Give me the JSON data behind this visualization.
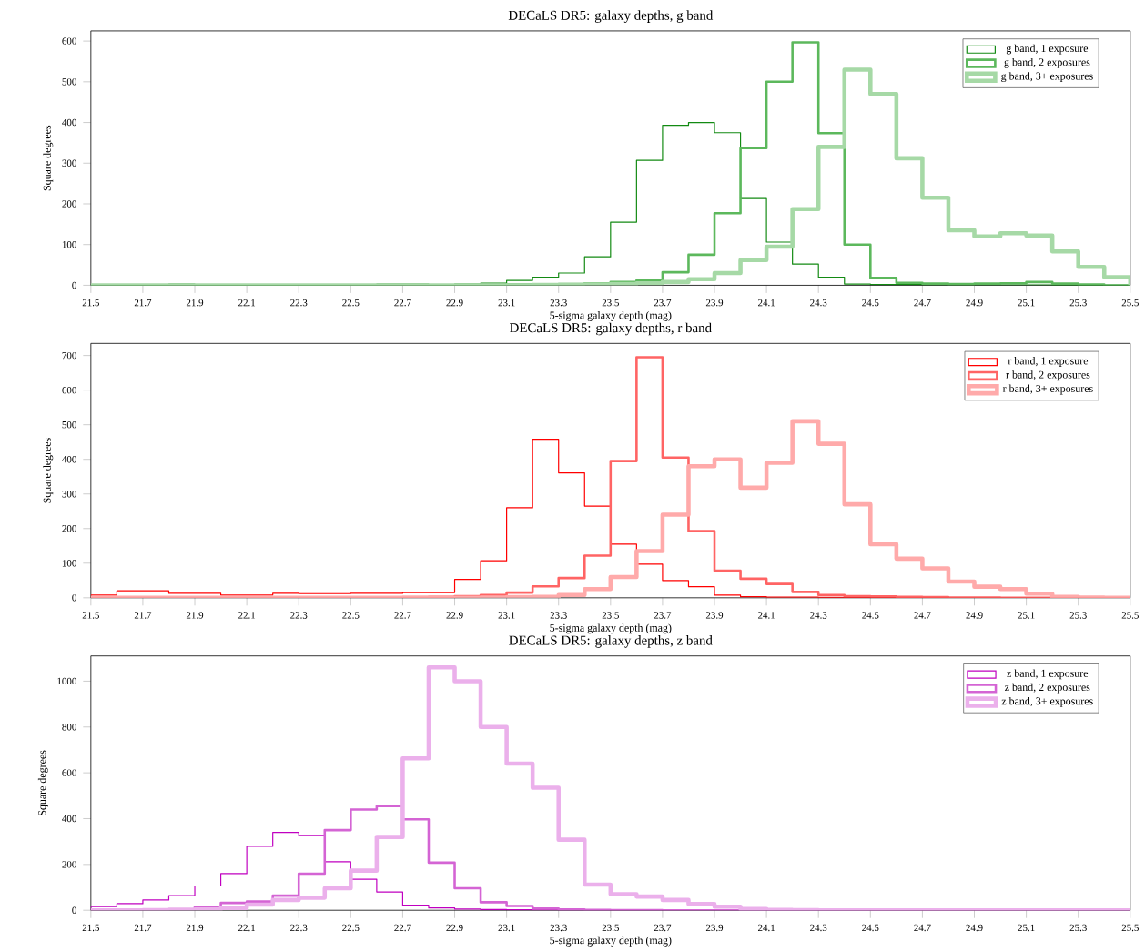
{
  "chart_data": [
    {
      "type": "histogram",
      "title": "DECaLS DR5: galaxy depths, g band",
      "xlabel": "5-sigma galaxy depth (mag)",
      "ylabel": "Square degrees",
      "bins": [
        21.5,
        21.6,
        21.7,
        21.8,
        21.9,
        22.0,
        22.1,
        22.2,
        22.3,
        22.4,
        22.5,
        22.6,
        22.7,
        22.8,
        22.9,
        23.0,
        23.1,
        23.2,
        23.3,
        23.4,
        23.5,
        23.6,
        23.7,
        23.8,
        23.9,
        24.0,
        24.1,
        24.2,
        24.3,
        24.4,
        24.5,
        24.6,
        24.7,
        24.8,
        24.9,
        25.0,
        25.1,
        25.2,
        25.3,
        25.4,
        25.5
      ],
      "series": [
        {
          "name": "g band, 1 exposure",
          "color": "#138a13",
          "values": [
            2,
            1,
            1,
            3,
            1,
            1,
            1,
            1,
            1,
            2,
            2,
            3,
            3,
            2,
            3,
            5,
            12,
            20,
            30,
            70,
            155,
            307,
            393,
            400,
            375,
            213,
            106,
            52,
            20,
            3,
            2,
            2,
            1,
            1,
            1,
            1,
            1,
            0,
            0,
            0
          ]
        },
        {
          "name": "g band, 2 exposures",
          "color": "#5cb85c",
          "values": [
            0,
            0,
            0,
            0,
            0,
            0,
            0,
            0,
            0,
            0,
            0,
            0,
            0,
            0,
            1,
            1,
            2,
            2,
            3,
            5,
            8,
            12,
            32,
            75,
            177,
            337,
            500,
            597,
            374,
            100,
            18,
            6,
            4,
            3,
            4,
            5,
            8,
            4,
            2,
            0
          ]
        },
        {
          "name": "g band, 3+ exposures",
          "color": "#a6d9a6",
          "values": [
            0,
            0,
            0,
            0,
            0,
            0,
            0,
            0,
            0,
            0,
            0,
            0,
            0,
            0,
            0,
            0,
            0,
            1,
            1,
            2,
            3,
            5,
            8,
            15,
            30,
            62,
            95,
            187,
            340,
            530,
            470,
            312,
            215,
            135,
            120,
            128,
            122,
            83,
            45,
            20
          ]
        }
      ],
      "xlim": [
        21.5,
        25.5
      ],
      "ylim": [
        0,
        625
      ],
      "xticks": [
        21.5,
        21.7,
        21.9,
        22.1,
        22.3,
        22.5,
        22.7,
        22.9,
        23.1,
        23.3,
        23.5,
        23.7,
        23.9,
        24.1,
        24.3,
        24.5,
        24.7,
        24.9,
        25.1,
        25.3,
        25.5
      ],
      "yticks": [
        0,
        100,
        200,
        300,
        400,
        500,
        600
      ],
      "legend": "top right"
    },
    {
      "type": "histogram",
      "title": "DECaLS DR5: galaxy depths, r band",
      "xlabel": "5-sigma galaxy depth (mag)",
      "ylabel": "Square degrees",
      "bins": [
        21.5,
        21.6,
        21.7,
        21.8,
        21.9,
        22.0,
        22.1,
        22.2,
        22.3,
        22.4,
        22.5,
        22.6,
        22.7,
        22.8,
        22.9,
        23.0,
        23.1,
        23.2,
        23.3,
        23.4,
        23.5,
        23.6,
        23.7,
        23.8,
        23.9,
        24.0,
        24.1,
        24.2,
        24.3,
        24.4,
        24.5,
        24.6,
        24.7,
        24.8,
        24.9,
        25.0,
        25.1,
        25.2,
        25.3,
        25.4,
        25.5
      ],
      "series": [
        {
          "name": "r band, 1 exposure",
          "color": "#ff0000",
          "values": [
            8,
            20,
            20,
            13,
            13,
            8,
            8,
            13,
            12,
            12,
            13,
            13,
            15,
            15,
            53,
            107,
            260,
            458,
            361,
            265,
            155,
            97,
            50,
            32,
            8,
            3,
            2,
            2,
            1,
            1,
            1,
            1,
            1,
            0,
            0,
            0,
            0,
            0,
            0,
            0
          ]
        },
        {
          "name": "r band, 2 exposures",
          "color": "#ff6464",
          "values": [
            0,
            0,
            0,
            0,
            0,
            0,
            0,
            0,
            1,
            1,
            1,
            1,
            2,
            3,
            5,
            8,
            15,
            33,
            57,
            122,
            395,
            695,
            405,
            193,
            78,
            55,
            40,
            17,
            8,
            5,
            4,
            3,
            2,
            1,
            1,
            0,
            0,
            0,
            0,
            0
          ]
        },
        {
          "name": "r band, 3+ exposures",
          "color": "#ffaaaa",
          "values": [
            0,
            0,
            0,
            0,
            0,
            0,
            0,
            0,
            0,
            0,
            0,
            0,
            0,
            0,
            0,
            1,
            2,
            3,
            8,
            25,
            60,
            135,
            240,
            380,
            400,
            318,
            390,
            510,
            445,
            270,
            155,
            113,
            85,
            47,
            32,
            25,
            12,
            3,
            1,
            0
          ]
        }
      ],
      "xlim": [
        21.5,
        25.5
      ],
      "ylim": [
        0,
        735
      ],
      "xticks": [
        21.5,
        21.7,
        21.9,
        22.1,
        22.3,
        22.5,
        22.7,
        22.9,
        23.1,
        23.3,
        23.5,
        23.7,
        23.9,
        24.1,
        24.3,
        24.5,
        24.7,
        24.9,
        25.1,
        25.3,
        25.5
      ],
      "yticks": [
        0,
        100,
        200,
        300,
        400,
        500,
        600,
        700
      ],
      "legend": "top right"
    },
    {
      "type": "histogram",
      "title": "DECaLS DR5: galaxy depths, z band",
      "xlabel": "5-sigma galaxy depth (mag)",
      "ylabel": "Square degrees",
      "bins": [
        21.5,
        21.6,
        21.7,
        21.8,
        21.9,
        22.0,
        22.1,
        22.2,
        22.3,
        22.4,
        22.5,
        22.6,
        22.7,
        22.8,
        22.9,
        23.0,
        23.1,
        23.2,
        23.3,
        23.4,
        23.5,
        23.6,
        23.7,
        23.8,
        23.9,
        24.0,
        24.1,
        24.2,
        24.3,
        24.4,
        24.5,
        24.6,
        24.7,
        24.8,
        24.9,
        25.0,
        25.1,
        25.2,
        25.3,
        25.4,
        25.5
      ],
      "series": [
        {
          "name": "z band, 1 exposure",
          "color": "#c000c0",
          "values": [
            16,
            29,
            45,
            64,
            106,
            160,
            279,
            340,
            327,
            212,
            135,
            80,
            22,
            10,
            5,
            3,
            2,
            1,
            0,
            0,
            0,
            0,
            0,
            0,
            0,
            0,
            0,
            0,
            0,
            0,
            0,
            0,
            0,
            0,
            0,
            0,
            0,
            0,
            0,
            0
          ]
        },
        {
          "name": "z band, 2 exposures",
          "color": "#d464d4",
          "values": [
            1,
            2,
            3,
            5,
            16,
            32,
            38,
            64,
            160,
            350,
            440,
            455,
            397,
            208,
            96,
            35,
            19,
            8,
            4,
            2,
            1,
            1,
            0,
            0,
            0,
            0,
            0,
            0,
            0,
            0,
            0,
            0,
            0,
            0,
            0,
            0,
            0,
            0,
            0,
            0
          ]
        },
        {
          "name": "z band, 3+ exposures",
          "color": "#ebb0eb",
          "values": [
            0,
            0,
            1,
            2,
            4,
            10,
            25,
            45,
            55,
            96,
            173,
            320,
            663,
            1060,
            1000,
            800,
            640,
            535,
            308,
            112,
            70,
            60,
            45,
            28,
            16,
            6,
            2,
            1,
            0,
            0,
            0,
            0,
            0,
            0,
            0,
            0,
            0,
            0,
            0,
            0
          ]
        }
      ],
      "xlim": [
        21.5,
        25.5
      ],
      "ylim": [
        0,
        1110
      ],
      "xticks": [
        21.5,
        21.7,
        21.9,
        22.1,
        22.3,
        22.5,
        22.7,
        22.9,
        23.1,
        23.3,
        23.5,
        23.7,
        23.9,
        24.1,
        24.3,
        24.5,
        24.7,
        24.9,
        25.1,
        25.3,
        25.5
      ],
      "yticks": [
        0,
        200,
        400,
        600,
        800,
        1000
      ],
      "legend": "top right"
    }
  ]
}
